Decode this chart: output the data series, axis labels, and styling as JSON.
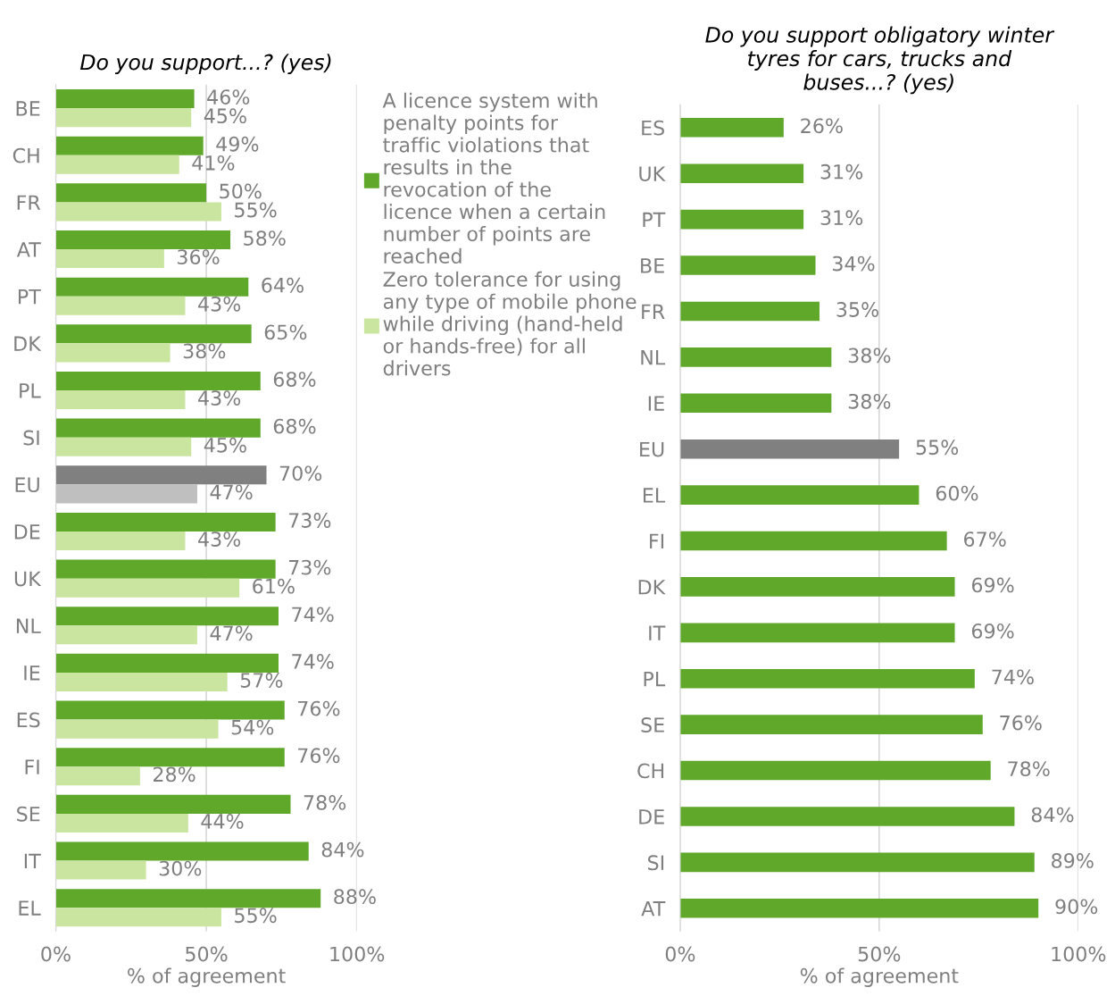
{
  "chart_data": [
    {
      "type": "bar",
      "orientation": "horizontal",
      "title": "Do you support...? (yes)",
      "xlabel": "% of agreement",
      "categories": [
        "BE",
        "CH",
        "FR",
        "AT",
        "PT",
        "DK",
        "PL",
        "SI",
        "EU",
        "DE",
        "UK",
        "NL",
        "IE",
        "ES",
        "FI",
        "SE",
        "IT",
        "EL"
      ],
      "series": [
        {
          "name": "A licence system with penalty points for traffic violations that results in the revocation of the licence when a certain number of points are reached",
          "color": "#5fa82a",
          "colors": [
            "#5fa82a",
            "#5fa82a",
            "#5fa82a",
            "#5fa82a",
            "#5fa82a",
            "#5fa82a",
            "#5fa82a",
            "#5fa82a",
            "#808080",
            "#5fa82a",
            "#5fa82a",
            "#5fa82a",
            "#5fa82a",
            "#5fa82a",
            "#5fa82a",
            "#5fa82a",
            "#5fa82a",
            "#5fa82a"
          ],
          "values": [
            46,
            49,
            50,
            58,
            64,
            65,
            68,
            68,
            70,
            73,
            73,
            74,
            74,
            76,
            76,
            78,
            84,
            88
          ],
          "value_labels": [
            "46%",
            "49%",
            "50%",
            "58%",
            "64%",
            "65%",
            "68%",
            "68%",
            "70%",
            "73%",
            "73%",
            "74%",
            "74%",
            "76%",
            "76%",
            "78%",
            "84%",
            "88%"
          ]
        },
        {
          "name": "Zero tolerance for using any type of mobile phone while driving (hand-held or hands-free) for all drivers",
          "color": "#c9e5a0",
          "colors": [
            "#c9e5a0",
            "#c9e5a0",
            "#c9e5a0",
            "#c9e5a0",
            "#c9e5a0",
            "#c9e5a0",
            "#c9e5a0",
            "#c9e5a0",
            "#bfbfbf",
            "#c9e5a0",
            "#c9e5a0",
            "#c9e5a0",
            "#c9e5a0",
            "#c9e5a0",
            "#c9e5a0",
            "#c9e5a0",
            "#c9e5a0",
            "#c9e5a0"
          ],
          "values": [
            45,
            41,
            55,
            36,
            43,
            38,
            43,
            45,
            47,
            43,
            61,
            47,
            57,
            54,
            28,
            44,
            30,
            55
          ],
          "value_labels": [
            "45%",
            "41%",
            "55%",
            "36%",
            "43%",
            "38%",
            "43%",
            "45%",
            "47%",
            "43%",
            "61%",
            "47%",
            "57%",
            "54%",
            "28%",
            "44%",
            "30%",
            "55%"
          ]
        }
      ],
      "xlim": [
        0,
        100
      ],
      "xticks": [
        {
          "value": 0,
          "label": "0%"
        },
        {
          "value": 50,
          "label": "50%"
        },
        {
          "value": 100,
          "label": "100%"
        }
      ],
      "grid": "x",
      "legend": "right"
    },
    {
      "type": "bar",
      "orientation": "horizontal",
      "title": "Do you support obligatory winter tyres for cars, trucks and buses...? (yes)",
      "xlabel": "% of agreement",
      "categories": [
        "ES",
        "UK",
        "PT",
        "BE",
        "FR",
        "NL",
        "IE",
        "EU",
        "EL",
        "FI",
        "DK",
        "IT",
        "PL",
        "SE",
        "CH",
        "DE",
        "SI",
        "AT"
      ],
      "series": [
        {
          "color": "#5fa82a",
          "colors": [
            "#5fa82a",
            "#5fa82a",
            "#5fa82a",
            "#5fa82a",
            "#5fa82a",
            "#5fa82a",
            "#5fa82a",
            "#808080",
            "#5fa82a",
            "#5fa82a",
            "#5fa82a",
            "#5fa82a",
            "#5fa82a",
            "#5fa82a",
            "#5fa82a",
            "#5fa82a",
            "#5fa82a",
            "#5fa82a"
          ],
          "values": [
            26,
            31,
            31,
            34,
            35,
            38,
            38,
            55,
            60,
            67,
            69,
            69,
            74,
            76,
            78,
            84,
            89,
            90
          ],
          "value_labels": [
            "26%",
            "31%",
            "31%",
            "34%",
            "35%",
            "38%",
            "38%",
            "55%",
            "60%",
            "67%",
            "69%",
            "69%",
            "74%",
            "76%",
            "78%",
            "84%",
            "89%",
            "90%"
          ]
        }
      ],
      "xlim": [
        0,
        100
      ],
      "xticks": [
        {
          "value": 0,
          "label": "0%"
        },
        {
          "value": 50,
          "label": "50%"
        },
        {
          "value": 100,
          "label": "100%"
        }
      ],
      "grid": "x",
      "legend": false
    }
  ]
}
